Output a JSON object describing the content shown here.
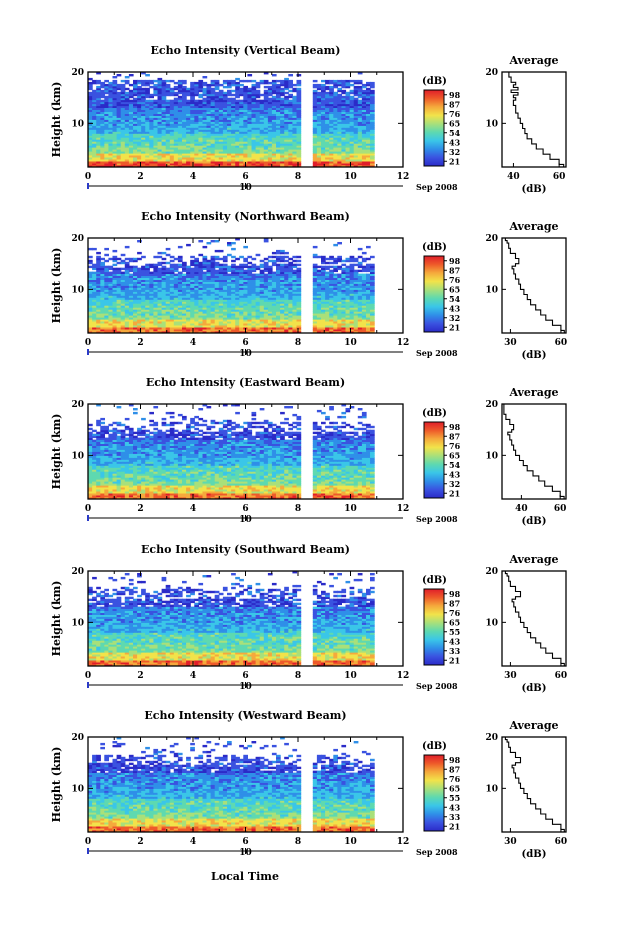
{
  "figure": {
    "xlabel": "Local Time",
    "colormap": [
      "#2b2bc8",
      "#3a52e0",
      "#2f8fe8",
      "#3ac6e8",
      "#5ed9b0",
      "#a9e07a",
      "#f2e34a",
      "#f5a93c",
      "#ee5a2a",
      "#e01e2a"
    ],
    "gap_color": "#ffffff"
  },
  "chart_data": [
    {
      "type": "heatmap",
      "title": "Echo Intensity (Vertical Beam)",
      "ylabel": "Height (km)",
      "xticks": [
        "0",
        "2",
        "4",
        "6",
        "8",
        "10",
        "12"
      ],
      "xlim": [
        0,
        12
      ],
      "yticks": [
        "10",
        "20"
      ],
      "ylim": [
        1.5,
        20
      ],
      "day_label": "10",
      "month_label": "Sep 2008",
      "data_gap_hours": [
        8.2,
        8.45
      ],
      "data_end_hour": 10.9,
      "colorbar": {
        "label": "(dB)",
        "ticks": [
          "21",
          "32",
          "43",
          "54",
          "65",
          "76",
          "87",
          "98"
        ]
      },
      "average_profile": {
        "title": "Average",
        "xlabel": "(dB)",
        "xticks": [
          "40",
          "60"
        ],
        "xlim": [
          35,
          63
        ],
        "yticks": [
          "10",
          "20"
        ],
        "ylim": [
          1.5,
          20
        ],
        "x": [
          62,
          60,
          56,
          53,
          50,
          48,
          46,
          45,
          44,
          43,
          42,
          41,
          41,
          40,
          40,
          41,
          40,
          42,
          39,
          42,
          40,
          41,
          39,
          38,
          37
        ],
        "y": [
          1.5,
          2,
          3,
          4,
          5,
          6,
          7,
          8,
          9,
          10,
          11,
          12,
          12.8,
          13.5,
          14,
          14.5,
          15,
          15.5,
          16,
          16.5,
          17,
          17.5,
          18,
          19,
          20
        ]
      }
    },
    {
      "type": "heatmap",
      "title": "Echo Intensity (Northward Beam)",
      "ylabel": "Height (km)",
      "xticks": [
        "0",
        "2",
        "4",
        "6",
        "8",
        "10",
        "12"
      ],
      "xlim": [
        0,
        12
      ],
      "yticks": [
        "10",
        "20"
      ],
      "ylim": [
        1.5,
        20
      ],
      "day_label": "10",
      "month_label": "Sep 2008",
      "data_gap_hours": [
        8.2,
        8.45
      ],
      "data_end_hour": 10.9,
      "colorbar": {
        "label": "(dB)",
        "ticks": [
          "21",
          "32",
          "43",
          "54",
          "65",
          "76",
          "87",
          "98"
        ]
      },
      "average_profile": {
        "title": "Average",
        "xlabel": "(dB)",
        "xticks": [
          "30",
          "60"
        ],
        "xlim": [
          25,
          63
        ],
        "yticks": [
          "10",
          "20"
        ],
        "ylim": [
          1.5,
          20
        ],
        "x": [
          62,
          60,
          55,
          51,
          48,
          45,
          42,
          40,
          38,
          36,
          35,
          33,
          32,
          31,
          33,
          35,
          33,
          30,
          29,
          28,
          27,
          26
        ],
        "y": [
          1.5,
          2,
          3,
          4,
          5,
          6,
          7,
          8,
          9,
          10,
          11,
          12,
          13,
          14,
          14.5,
          15,
          16,
          17,
          18,
          19,
          19.5,
          20
        ]
      }
    },
    {
      "type": "heatmap",
      "title": "Echo Intensity (Eastward Beam)",
      "ylabel": "Height (km)",
      "xticks": [
        "0",
        "2",
        "4",
        "6",
        "8",
        "10",
        "12"
      ],
      "xlim": [
        0,
        12
      ],
      "yticks": [
        "10",
        "20"
      ],
      "ylim": [
        1.5,
        20
      ],
      "day_label": "10",
      "month_label": "Sep 2008",
      "data_gap_hours": [
        8.2,
        8.45
      ],
      "data_end_hour": 10.9,
      "colorbar": {
        "label": "(dB)",
        "ticks": [
          "21",
          "32",
          "43",
          "54",
          "65",
          "76",
          "87",
          "98"
        ]
      },
      "average_profile": {
        "title": "Average",
        "xlabel": "(dB)",
        "xticks": [
          "40",
          "60"
        ],
        "xlim": [
          30,
          63
        ],
        "yticks": [
          "10",
          "20"
        ],
        "ylim": [
          1.5,
          20
        ],
        "x": [
          62,
          60,
          56,
          52,
          49,
          46,
          43,
          41,
          39,
          37,
          36,
          35,
          34,
          33,
          35,
          36,
          34,
          32,
          31,
          31,
          30
        ],
        "y": [
          1.5,
          2,
          3,
          4,
          5,
          6,
          7,
          8,
          9,
          10,
          11,
          12,
          13,
          14,
          14.5,
          15,
          16,
          17,
          18,
          19,
          20
        ]
      }
    },
    {
      "type": "heatmap",
      "title": "Echo Intensity (Southward Beam)",
      "ylabel": "Height (km)",
      "xticks": [
        "0",
        "2",
        "4",
        "6",
        "8",
        "10",
        "12"
      ],
      "xlim": [
        0,
        12
      ],
      "yticks": [
        "10",
        "20"
      ],
      "ylim": [
        1.5,
        20
      ],
      "day_label": "10",
      "month_label": "Sep 2008",
      "data_gap_hours": [
        8.2,
        8.45
      ],
      "data_end_hour": 10.9,
      "colorbar": {
        "label": "(dB)",
        "ticks": [
          "21",
          "33",
          "43",
          "55",
          "65",
          "76",
          "87",
          "98"
        ]
      },
      "average_profile": {
        "title": "Average",
        "xlabel": "(dB)",
        "xticks": [
          "30",
          "60"
        ],
        "xlim": [
          25,
          63
        ],
        "yticks": [
          "10",
          "20"
        ],
        "ylim": [
          1.5,
          20
        ],
        "x": [
          62,
          60,
          55,
          51,
          48,
          45,
          42,
          40,
          38,
          36,
          35,
          33,
          32,
          31,
          33,
          36,
          33,
          30,
          29,
          28,
          27,
          26
        ],
        "y": [
          1.5,
          2,
          3,
          4,
          5,
          6,
          7,
          8,
          9,
          10,
          11,
          12,
          13,
          14,
          14.5,
          15,
          16,
          17,
          18,
          19,
          19.5,
          20
        ]
      }
    },
    {
      "type": "heatmap",
      "title": "Echo Intensity (Westward Beam)",
      "ylabel": "Height (km)",
      "xticks": [
        "0",
        "2",
        "4",
        "6",
        "8",
        "10",
        "12"
      ],
      "xlim": [
        0,
        12
      ],
      "yticks": [
        "10",
        "20"
      ],
      "ylim": [
        1.5,
        20
      ],
      "day_label": "10",
      "month_label": "Sep 2008",
      "data_gap_hours": [
        8.2,
        8.45
      ],
      "data_end_hour": 10.9,
      "colorbar": {
        "label": "(dB)",
        "ticks": [
          "21",
          "33",
          "43",
          "55",
          "65",
          "76",
          "87",
          "98"
        ]
      },
      "average_profile": {
        "title": "Average",
        "xlabel": "(dB)",
        "xticks": [
          "30",
          "60"
        ],
        "xlim": [
          25,
          63
        ],
        "yticks": [
          "10",
          "20"
        ],
        "ylim": [
          1.5,
          20
        ],
        "x": [
          62,
          60,
          55,
          51,
          48,
          45,
          42,
          40,
          38,
          36,
          35,
          33,
          32,
          31,
          33,
          36,
          33,
          30,
          29,
          28,
          27,
          26
        ],
        "y": [
          1.5,
          2,
          3,
          4,
          5,
          6,
          7,
          8,
          9,
          10,
          11,
          12,
          13,
          14,
          14.5,
          15,
          16,
          17,
          18,
          19,
          19.5,
          20
        ]
      }
    }
  ]
}
